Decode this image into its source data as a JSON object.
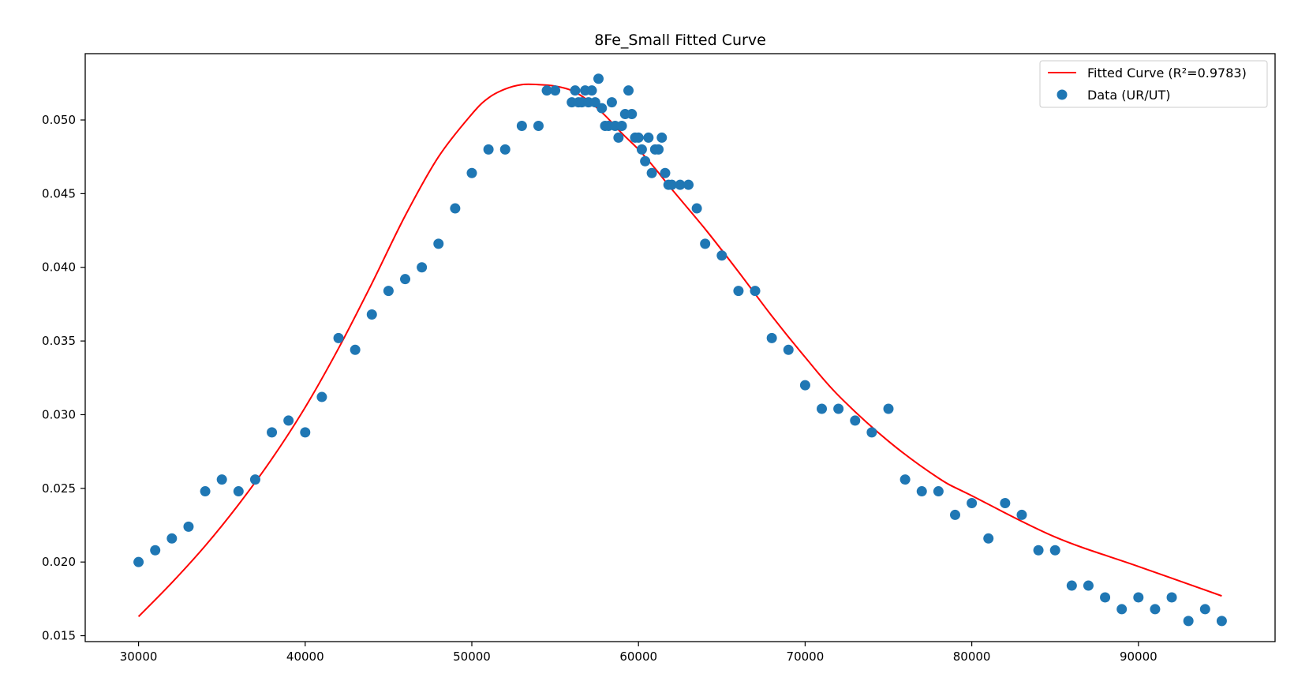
{
  "chart_data": {
    "type": "scatter",
    "title": "8Fe_Small Fitted Curve",
    "xlabel": "",
    "ylabel": "",
    "xlim": [
      26800,
      98200
    ],
    "ylim": [
      0.0146,
      0.0545
    ],
    "grid": false,
    "legend_position": "top-right",
    "x_ticks": [
      30000,
      40000,
      50000,
      60000,
      70000,
      80000,
      90000
    ],
    "y_ticks": [
      0.015,
      0.02,
      0.025,
      0.03,
      0.035,
      0.04,
      0.045,
      0.05
    ],
    "x_tick_labels": [
      "30000",
      "40000",
      "50000",
      "60000",
      "70000",
      "80000",
      "90000"
    ],
    "y_tick_labels": [
      "0.015",
      "0.020",
      "0.025",
      "0.030",
      "0.035",
      "0.040",
      "0.045",
      "0.050"
    ],
    "series": [
      {
        "name": "Fitted Curve (R²=0.9783)",
        "kind": "line",
        "color": "#ff0000",
        "x": [
          30000,
          32000,
          34000,
          36000,
          38000,
          40000,
          42000,
          44000,
          46000,
          48000,
          50000,
          51000,
          52000,
          53000,
          54000,
          55000,
          56000,
          57000,
          58000,
          59000,
          60000,
          61000,
          62000,
          64000,
          66000,
          68000,
          70000,
          72000,
          75000,
          78000,
          80000,
          85000,
          90000,
          95000
        ],
        "y": [
          0.0163,
          0.0186,
          0.0211,
          0.0239,
          0.027,
          0.0305,
          0.0345,
          0.0389,
          0.0435,
          0.0475,
          0.0504,
          0.0515,
          0.0521,
          0.0524,
          0.0524,
          0.0523,
          0.052,
          0.0513,
          0.0503,
          0.0491,
          0.048,
          0.0467,
          0.0453,
          0.0426,
          0.0397,
          0.0367,
          0.0339,
          0.0313,
          0.0282,
          0.0257,
          0.0245,
          0.0217,
          0.0197,
          0.0177
        ]
      },
      {
        "name": "Data (UR/UT)",
        "kind": "scatter",
        "color": "#1f77b4",
        "x": [
          30000,
          31000,
          32000,
          33000,
          34000,
          35000,
          36000,
          37000,
          38000,
          39000,
          40000,
          41000,
          42000,
          43000,
          44000,
          45000,
          46000,
          47000,
          48000,
          49000,
          50000,
          51000,
          52000,
          53000,
          54000,
          54500,
          55000,
          56000,
          56200,
          56400,
          56600,
          56800,
          57000,
          57200,
          57400,
          57600,
          57800,
          58000,
          58200,
          58400,
          58600,
          58800,
          59000,
          59200,
          59400,
          59600,
          59800,
          60000,
          60200,
          60400,
          60600,
          60800,
          61000,
          61200,
          61400,
          61600,
          61800,
          62000,
          62500,
          63000,
          63500,
          64000,
          65000,
          66000,
          67000,
          68000,
          69000,
          70000,
          71000,
          72000,
          73000,
          74000,
          75000,
          76000,
          77000,
          78000,
          79000,
          80000,
          81000,
          82000,
          83000,
          84000,
          85000,
          86000,
          87000,
          88000,
          89000,
          90000,
          91000,
          92000,
          93000,
          94000,
          95000
        ],
        "y": [
          0.02,
          0.0208,
          0.0216,
          0.0224,
          0.0248,
          0.0256,
          0.0248,
          0.0256,
          0.0288,
          0.0296,
          0.0288,
          0.0312,
          0.0352,
          0.0344,
          0.0368,
          0.0384,
          0.0392,
          0.04,
          0.0416,
          0.044,
          0.0464,
          0.048,
          0.048,
          0.0496,
          0.0496,
          0.052,
          0.052,
          0.0512,
          0.052,
          0.0512,
          0.0512,
          0.052,
          0.0512,
          0.052,
          0.0512,
          0.0528,
          0.0508,
          0.0496,
          0.0496,
          0.0512,
          0.0496,
          0.0488,
          0.0496,
          0.0504,
          0.052,
          0.0504,
          0.0488,
          0.0488,
          0.048,
          0.0472,
          0.0488,
          0.0464,
          0.048,
          0.048,
          0.0488,
          0.0464,
          0.0456,
          0.0456,
          0.0456,
          0.0456,
          0.044,
          0.0416,
          0.0408,
          0.0384,
          0.0384,
          0.0352,
          0.0344,
          0.032,
          0.0304,
          0.0304,
          0.0296,
          0.0288,
          0.0304,
          0.0256,
          0.0248,
          0.0248,
          0.0232,
          0.024,
          0.0216,
          0.024,
          0.0232,
          0.0208,
          0.0208,
          0.0184,
          0.0184,
          0.0176,
          0.0168,
          0.0176,
          0.0168,
          0.0176,
          0.016,
          0.0168,
          0.016
        ]
      }
    ]
  }
}
